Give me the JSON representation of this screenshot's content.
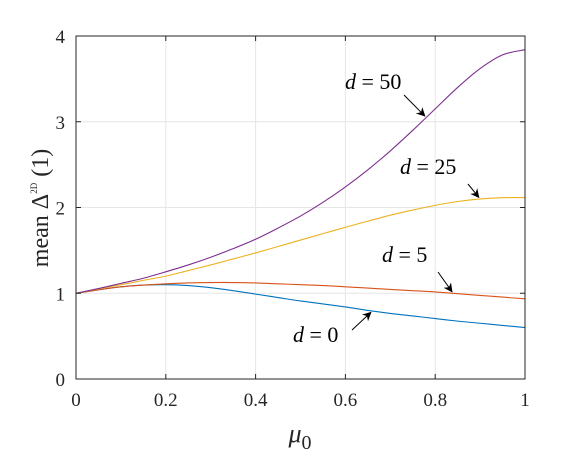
{
  "chart_data": {
    "type": "line",
    "xlabel": "μ",
    "xlabel_sub": "0",
    "ylabel": "mean Δ",
    "ylabel_sup": "2D",
    "ylabel_suffix": "(1)",
    "xlim": [
      0,
      1
    ],
    "ylim": [
      0,
      4
    ],
    "xticks": [
      0,
      0.2,
      0.4,
      0.6,
      0.8,
      1
    ],
    "xtick_labels": [
      "0",
      "0.2",
      "0.4",
      "0.6",
      "0.8",
      "1"
    ],
    "yticks": [
      0,
      1,
      2,
      3,
      4
    ],
    "ytick_labels": [
      "0",
      "1",
      "2",
      "3",
      "4"
    ],
    "grid": true,
    "x": [
      0,
      0.05,
      0.1,
      0.15,
      0.2,
      0.25,
      0.3,
      0.35,
      0.4,
      0.45,
      0.5,
      0.55,
      0.6,
      0.65,
      0.7,
      0.75,
      0.8,
      0.85,
      0.9,
      0.95,
      1.0
    ],
    "series": [
      {
        "label": "d = 0",
        "color": "#0072BD",
        "values": [
          1.0,
          1.04,
          1.075,
          1.095,
          1.1,
          1.09,
          1.065,
          1.03,
          0.99,
          0.95,
          0.91,
          0.875,
          0.84,
          0.8,
          0.765,
          0.735,
          0.705,
          0.675,
          0.65,
          0.625,
          0.6
        ]
      },
      {
        "label": "d = 5",
        "color": "#D95319",
        "values": [
          1.0,
          1.04,
          1.075,
          1.095,
          1.11,
          1.12,
          1.125,
          1.125,
          1.12,
          1.11,
          1.1,
          1.09,
          1.075,
          1.06,
          1.045,
          1.03,
          1.015,
          0.995,
          0.975,
          0.955,
          0.935
        ]
      },
      {
        "label": "d = 25",
        "color": "#EDB120",
        "values": [
          1.0,
          1.05,
          1.1,
          1.15,
          1.2,
          1.265,
          1.33,
          1.4,
          1.47,
          1.545,
          1.62,
          1.695,
          1.77,
          1.84,
          1.91,
          1.97,
          2.025,
          2.07,
          2.1,
          2.115,
          2.115
        ]
      },
      {
        "label": "d = 50",
        "color": "#7E2F8E",
        "values": [
          1.0,
          1.055,
          1.115,
          1.175,
          1.25,
          1.33,
          1.42,
          1.52,
          1.63,
          1.76,
          1.9,
          2.06,
          2.24,
          2.44,
          2.66,
          2.9,
          3.15,
          3.4,
          3.62,
          3.78,
          3.84
        ]
      }
    ],
    "annotations": [
      {
        "text_var": "d",
        "text_rest": " = 50",
        "series": "d = 50"
      },
      {
        "text_var": "d",
        "text_rest": " = 25",
        "series": "d = 25"
      },
      {
        "text_var": "d",
        "text_rest": " = 5",
        "series": "d = 5"
      },
      {
        "text_var": "d",
        "text_rest": " = 0",
        "series": "d = 0"
      }
    ]
  }
}
